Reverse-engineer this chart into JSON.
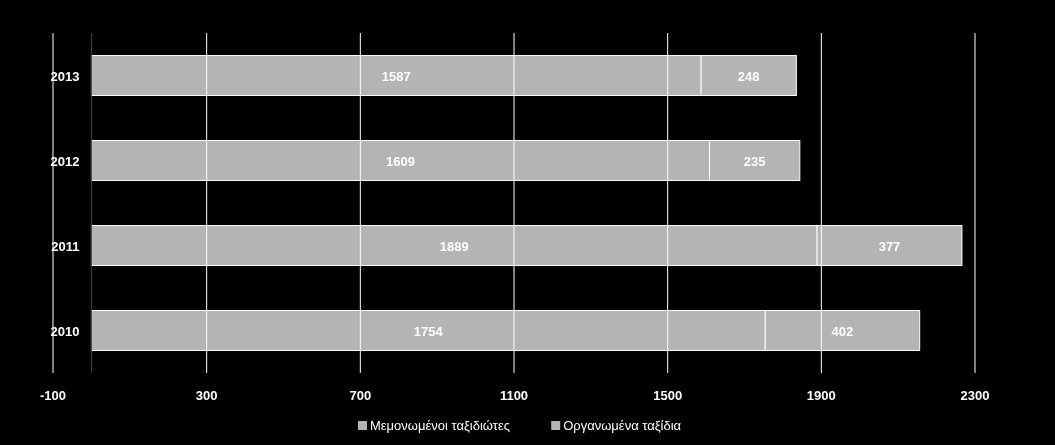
{
  "chart_data": {
    "type": "bar",
    "orientation": "horizontal",
    "stacked": true,
    "categories": [
      "2013",
      "2012",
      "2011",
      "2010"
    ],
    "series": [
      {
        "name": "Μεμονωμένοι ταξιδιώτες",
        "color": "#b4b4b4",
        "values": [
          1587,
          1609,
          1889,
          1754
        ]
      },
      {
        "name": "Οργανωμένα ταξίδια",
        "color": "#b4b4b4",
        "values": [
          248,
          235,
          377,
          402
        ]
      }
    ],
    "xlim": [
      -100,
      2300
    ],
    "xticks": [
      -100,
      300,
      700,
      1100,
      1500,
      1900,
      2300
    ],
    "grid": "x",
    "data_labels": true,
    "legend": "bottom"
  }
}
